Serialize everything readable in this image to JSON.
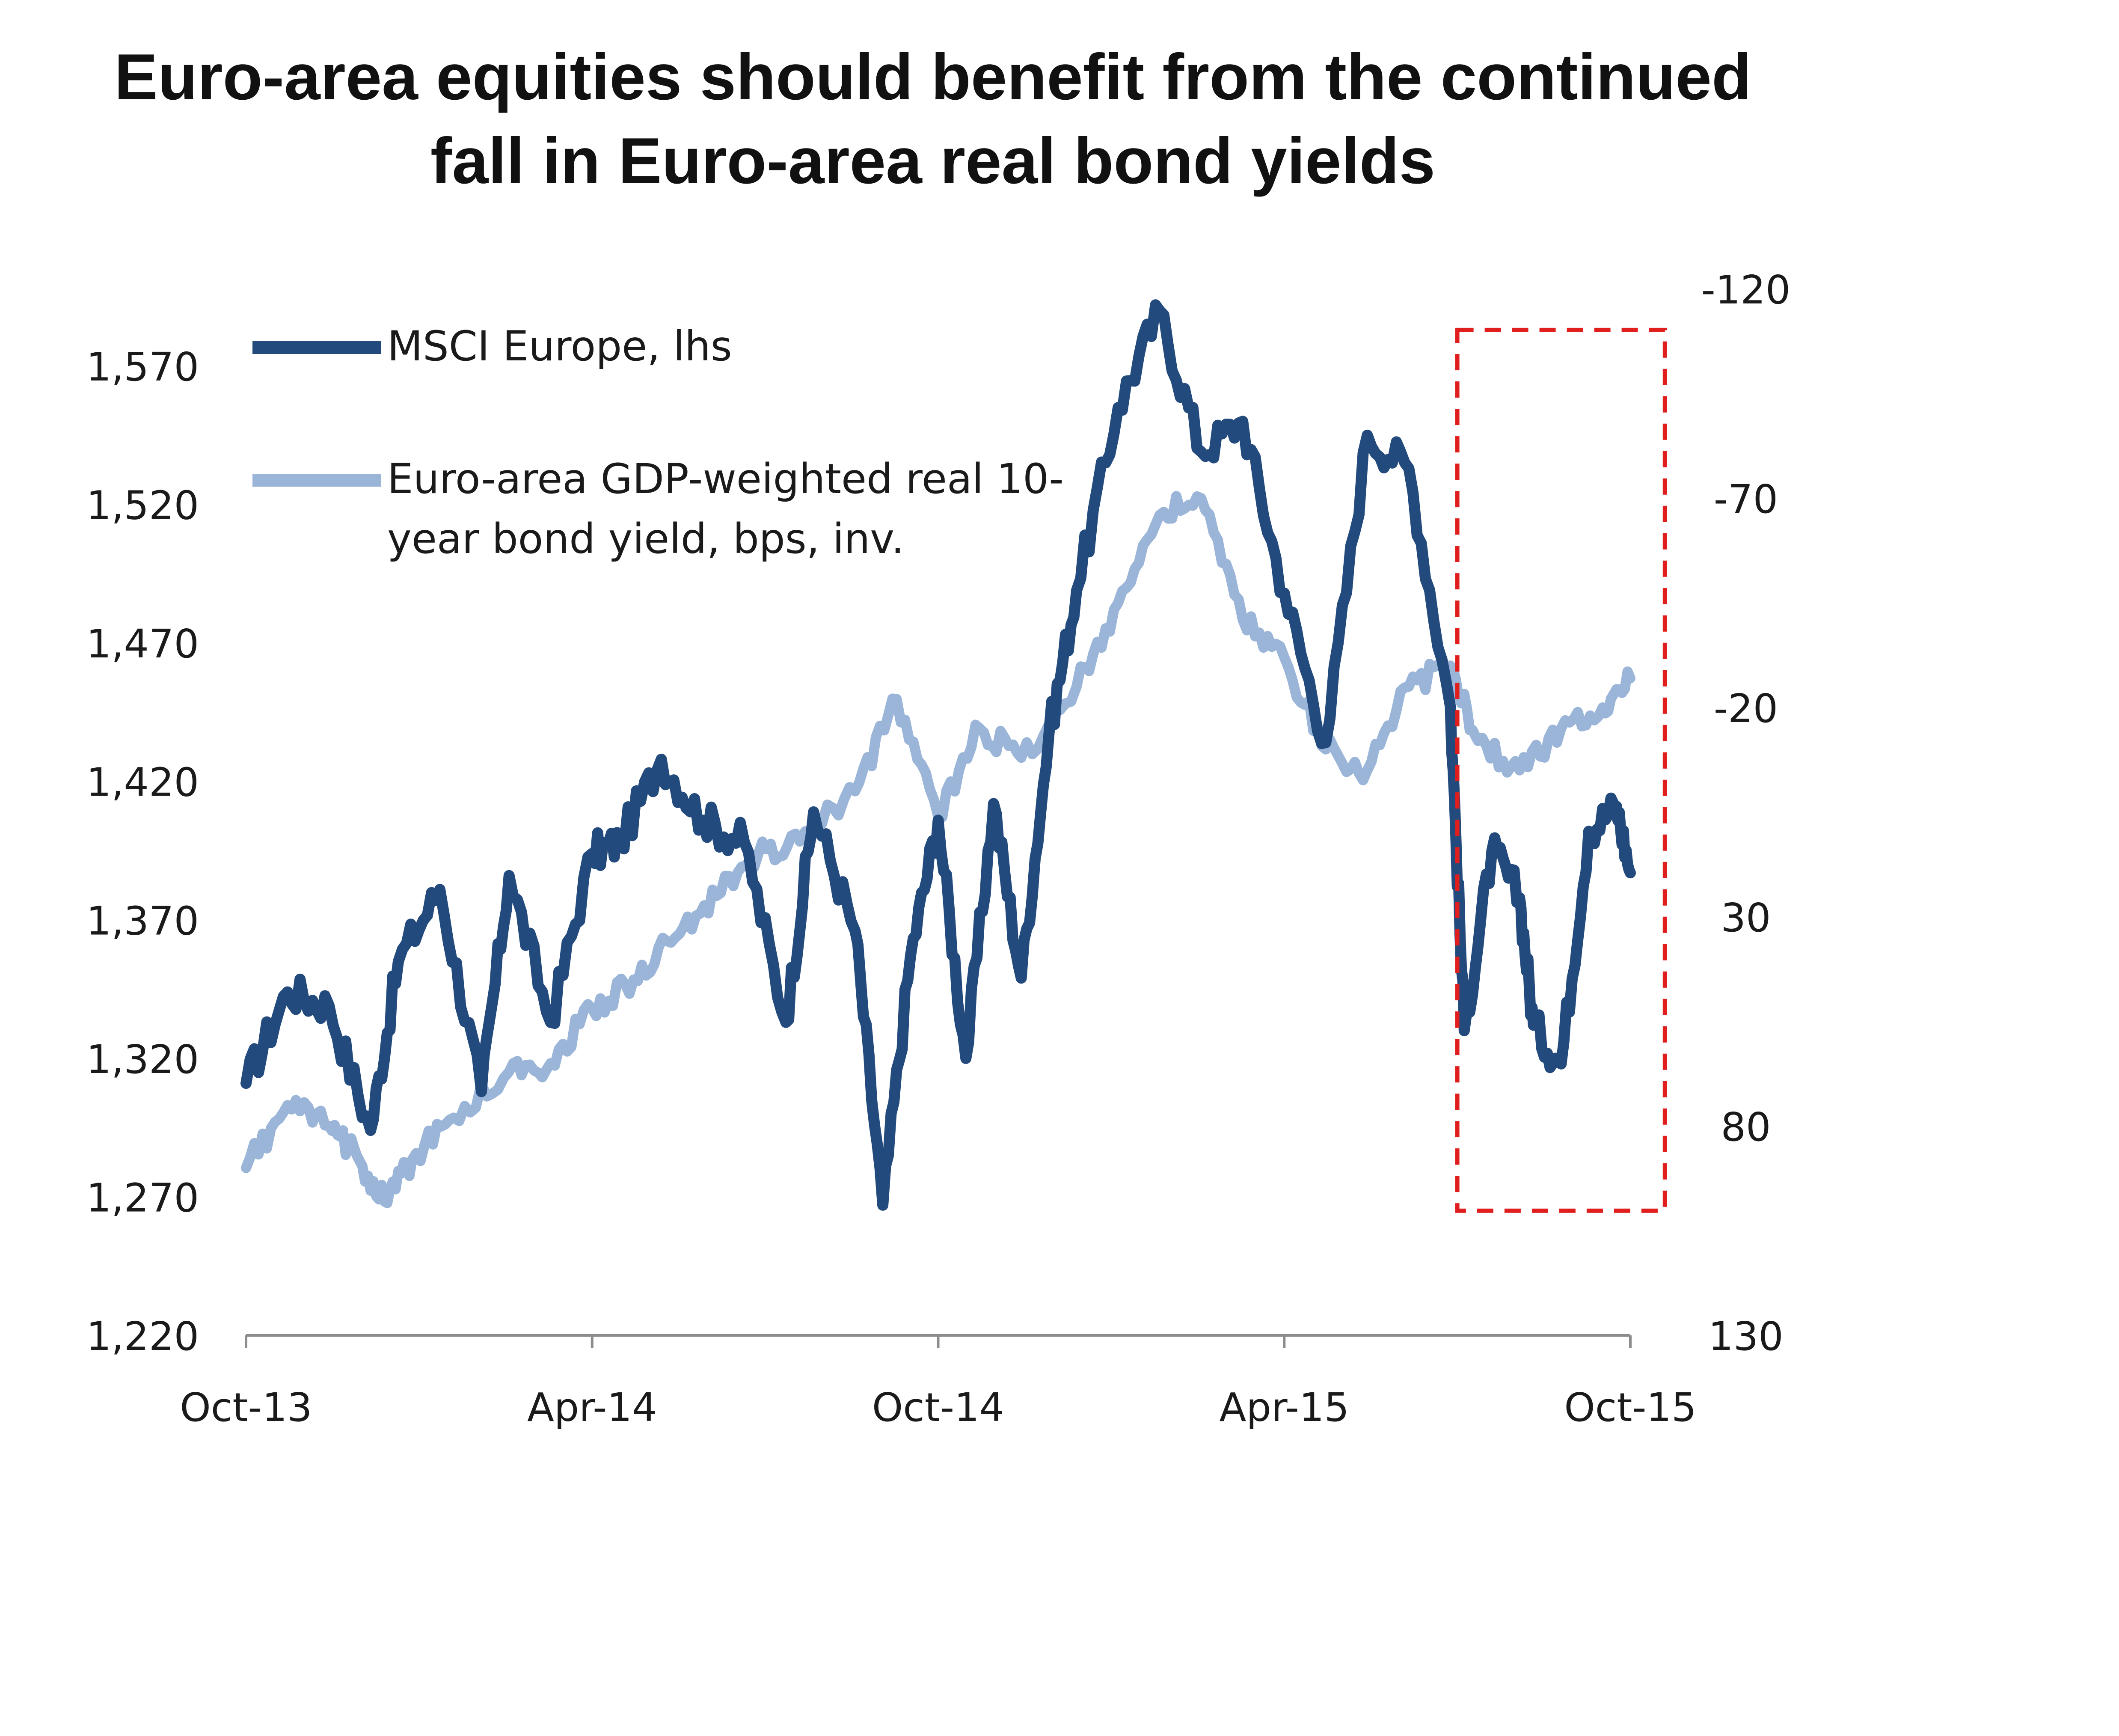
{
  "chart_data": {
    "type": "line",
    "title": "Euro-area equities should benefit from the continued fall in Euro-area real bond yields",
    "title_lines": [
      "Euro-area equities should benefit from the continued",
      "fall in Euro-area real bond yields"
    ],
    "x_ticks": [
      "Oct-13",
      "Apr-14",
      "Oct-14",
      "Apr-15",
      "Oct-15"
    ],
    "y_left": {
      "ticks": [
        "1,570",
        "1,520",
        "1,470",
        "1,420",
        "1,370",
        "1,320",
        "1,270",
        "1,220"
      ],
      "tick_values": [
        1570,
        1520,
        1470,
        1420,
        1370,
        1320,
        1270,
        1220
      ],
      "range": [
        1220,
        1590
      ]
    },
    "y_right": {
      "ticks": [
        "-120",
        "-70",
        "-20",
        "30",
        "80",
        "130"
      ],
      "tick_values": [
        -120,
        -70,
        -20,
        30,
        80,
        130
      ],
      "range": [
        130,
        -120
      ],
      "inverted": true
    },
    "series": [
      {
        "name": "MSCI Europe, lhs",
        "axis": "left",
        "color": "#234a7c",
        "x": [
          0,
          0.03,
          0.06,
          0.09,
          0.11,
          0.14,
          0.17,
          0.19,
          0.22,
          0.25,
          0.27,
          0.3,
          0.33,
          0.36,
          0.39,
          0.41,
          0.44,
          0.46,
          0.48,
          0.5,
          0.52,
          0.54,
          0.56,
          0.58,
          0.6,
          0.63,
          0.66,
          0.69,
          0.72,
          0.75,
          0.78,
          0.81,
          0.84,
          0.87,
          0.88,
          0.9,
          0.92,
          0.93,
          0.95,
          0.97,
          0.99,
          1.0
        ],
        "values": [
          1311,
          1344,
          1339,
          1294,
          1355,
          1381,
          1308,
          1386,
          1333,
          1394,
          1398,
          1428,
          1406,
          1398,
          1333,
          1409,
          1366,
          1267,
          1357,
          1406,
          1320,
          1412,
          1349,
          1437,
          1489,
          1555,
          1590,
          1539,
          1550,
          1488,
          1434,
          1545,
          1533,
          1447,
          1330,
          1395,
          1378,
          1332,
          1318,
          1402,
          1411,
          1387
        ]
      },
      {
        "name": "Euro-area GDP-weighted real 10-year bond yield, bps, inv.",
        "axis": "right",
        "color": "#9bb5d9",
        "x": [
          0,
          0.03,
          0.06,
          0.08,
          0.1,
          0.12,
          0.15,
          0.19,
          0.22,
          0.25,
          0.28,
          0.31,
          0.34,
          0.37,
          0.4,
          0.44,
          0.47,
          0.5,
          0.53,
          0.56,
          0.6,
          0.63,
          0.66,
          0.69,
          0.72,
          0.75,
          0.78,
          0.81,
          0.84,
          0.87,
          0.89,
          0.92,
          0.95,
          0.98,
          1.0
        ],
        "values": [
          90,
          75,
          80,
          87,
          98,
          88,
          78,
          67,
          65,
          52,
          45,
          35,
          25,
          15,
          12,
          0,
          -22,
          6,
          -15,
          -8,
          -25,
          -45,
          -66,
          -70,
          -41,
          -32,
          -10,
          -5,
          -25,
          -30,
          -12,
          -5,
          -15,
          -20,
          -27
        ]
      }
    ],
    "legend": [
      {
        "label": "MSCI Europe, lhs",
        "color": "#234a7c"
      },
      {
        "label_lines": [
          "Euro-area GDP-weighted real 10-",
          "year bond yield, bps, inv."
        ],
        "color": "#9bb5d9"
      }
    ],
    "annotation": {
      "type": "dashed-box",
      "color": "#e01e1e",
      "x_range": [
        0.875,
        1.025
      ],
      "y_left_range": [
        1265,
        1583
      ]
    }
  }
}
